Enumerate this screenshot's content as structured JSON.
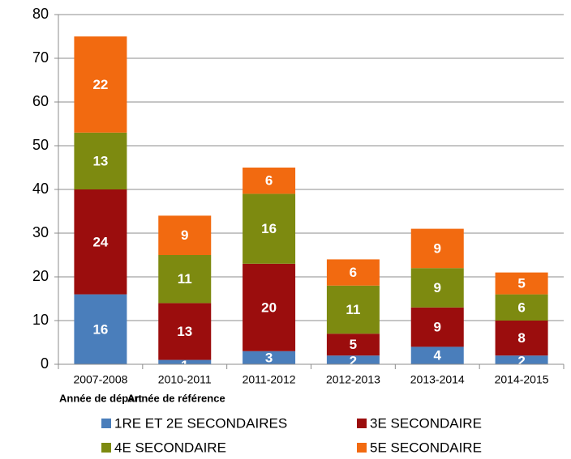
{
  "chart_data": {
    "type": "stacked_bar",
    "categories": [
      "2007-2008",
      "2010-2011",
      "2011-2012",
      "2012-2013",
      "2013-2014",
      "2014-2015"
    ],
    "annotations": [
      "Année de départ",
      "Année de référence"
    ],
    "series": [
      {
        "name": "1RE ET 2E SECONDAIRES",
        "color": "#4a7ebb",
        "values": [
          16,
          1,
          3,
          2,
          4,
          2
        ]
      },
      {
        "name": "3E SECONDAIRE",
        "color": "#9b0d0d",
        "values": [
          24,
          13,
          20,
          5,
          9,
          8
        ]
      },
      {
        "name": "4E SECONDAIRE",
        "color": "#7d8a10",
        "values": [
          13,
          11,
          16,
          11,
          9,
          6
        ]
      },
      {
        "name": "5E SECONDAIRE",
        "color": "#f26a10",
        "values": [
          22,
          9,
          6,
          6,
          9,
          5
        ]
      }
    ],
    "ylim": [
      0,
      80
    ],
    "yticks": [
      0,
      10,
      20,
      30,
      40,
      50,
      60,
      70,
      80
    ],
    "grid": true,
    "legend": "bottom"
  }
}
